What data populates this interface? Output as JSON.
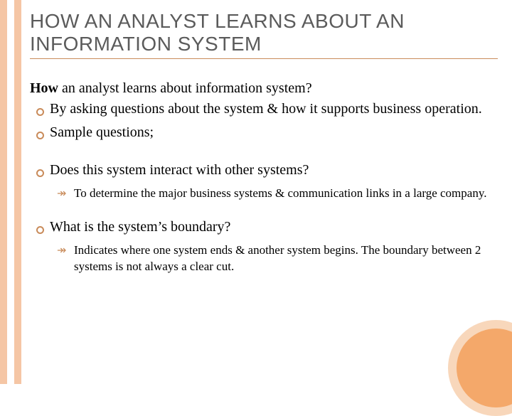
{
  "title": "HOW AN ANALYST LEARNS ABOUT AN INFORMATION SYSTEM",
  "lead_bold": "How",
  "lead_rest": " an analyst learns about information system?",
  "bullets": {
    "b1": "By asking questions about the system & how it supports business operation.",
    "b2": "Sample questions;",
    "b3": "Does this system interact with other systems?",
    "b3_sub": "To determine the major business systems & communication links in a large company.",
    "b4": "What is the system’s boundary?",
    "b4_sub": "Indicates where one system ends & another system begins. The boundary between 2 systems is not always a clear cut."
  },
  "colors": {
    "accent": "#c98b5a",
    "bar": "#f5c6a5",
    "circle_fill": "#f4a86a",
    "circle_ring": "#f8d7bb",
    "title_text": "#5b5b5b"
  }
}
